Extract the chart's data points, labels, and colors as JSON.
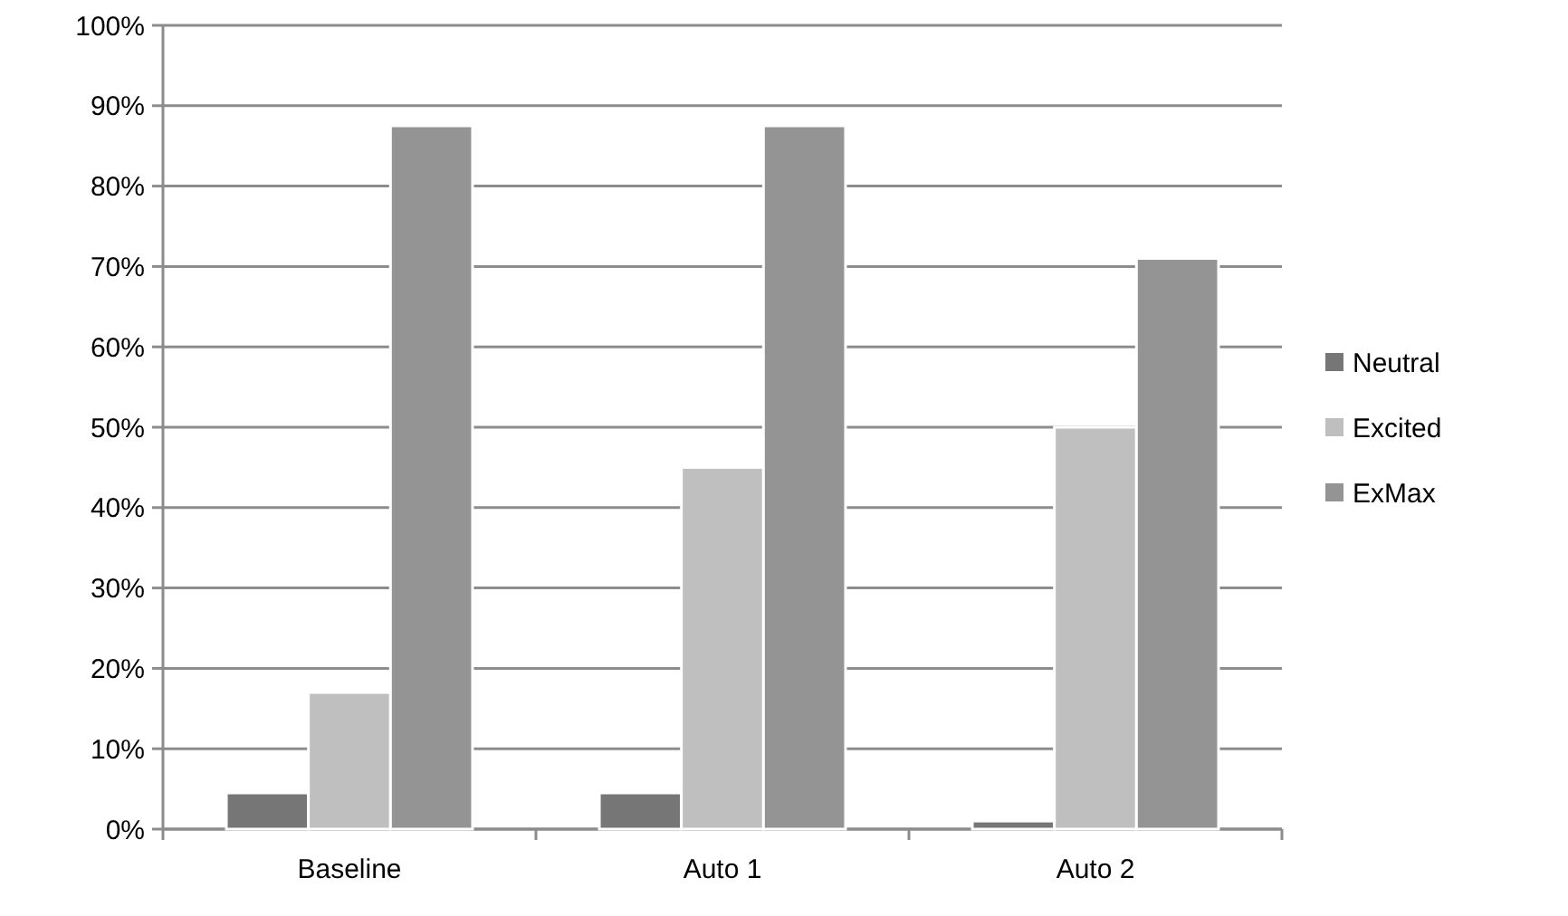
{
  "chart_data": {
    "type": "bar",
    "categories": [
      "Baseline",
      "Auto 1",
      "Auto 2"
    ],
    "series": [
      {
        "name": "Neutral",
        "color": "#767676",
        "values": [
          4.5,
          4.5,
          1
        ]
      },
      {
        "name": "Excited",
        "color": "#bfbfbf",
        "values": [
          17,
          45,
          50
        ]
      },
      {
        "name": "ExMax",
        "color": "#949494",
        "values": [
          87.5,
          87.5,
          71
        ]
      }
    ],
    "ylim": [
      0,
      100
    ],
    "yticks": [
      {
        "value": 0,
        "label": "0%"
      },
      {
        "value": 10,
        "label": "10%"
      },
      {
        "value": 20,
        "label": "20%"
      },
      {
        "value": 30,
        "label": "30%"
      },
      {
        "value": 40,
        "label": "40%"
      },
      {
        "value": 50,
        "label": "50%"
      },
      {
        "value": 60,
        "label": "60%"
      },
      {
        "value": 70,
        "label": "70%"
      },
      {
        "value": 80,
        "label": "80%"
      },
      {
        "value": 90,
        "label": "90%"
      },
      {
        "value": 100,
        "label": "100%"
      }
    ],
    "grid": "y",
    "legend": "right"
  }
}
